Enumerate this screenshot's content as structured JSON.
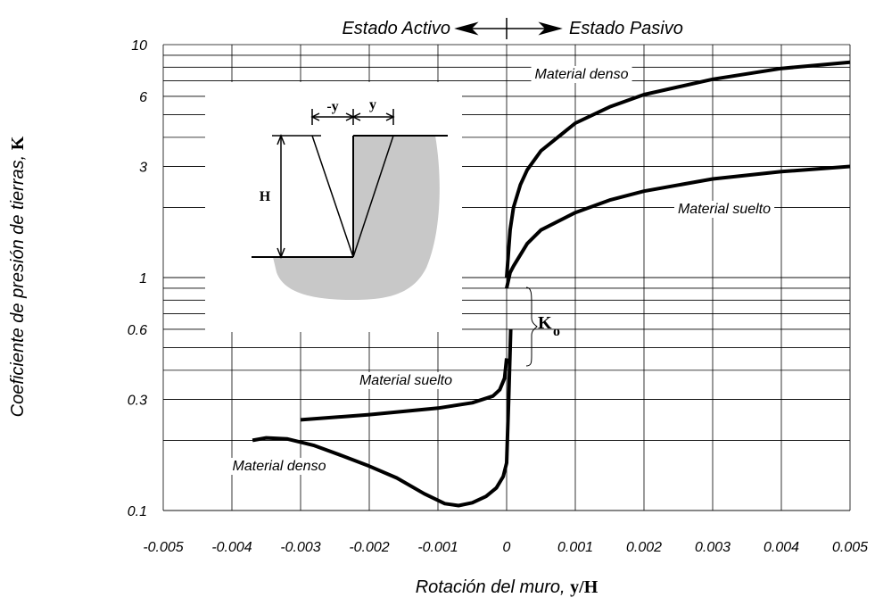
{
  "chart_data": {
    "type": "line",
    "top_left_label": "Estado Activo",
    "top_right_label": "Estado Pasivo",
    "x_label": "Rotación del muro, ",
    "x_label_symbol": "y/H",
    "y_label": "Coeficiente de presión de tierras, ",
    "y_label_symbol": "K",
    "ko_symbol": "K",
    "ko_subscript": "o",
    "inset": {
      "neg_y": "-y",
      "pos_y": "y",
      "height": "H"
    },
    "xlim": [
      -0.005,
      0.005
    ],
    "xticks": [
      -0.005,
      -0.004,
      -0.003,
      -0.002,
      -0.001,
      0,
      0.001,
      0.002,
      0.003,
      0.004,
      0.005
    ],
    "ylim": [
      0.1,
      10
    ],
    "yticks": [
      0.1,
      0.3,
      0.6,
      1,
      3,
      6,
      10
    ],
    "log_y": true,
    "grid": true,
    "series": [
      {
        "name": "Material denso",
        "color": "#000000",
        "x": [
          0,
          5e-05,
          0.0001,
          0.0002,
          0.0003,
          0.0005,
          0.001,
          0.0015,
          0.002,
          0.003,
          0.004,
          0.005
        ],
        "values": [
          1,
          1.6,
          2,
          2.5,
          2.9,
          3.5,
          4.6,
          5.4,
          6.1,
          7.1,
          7.9,
          8.4
        ]
      },
      {
        "name": "Material suelto",
        "color": "#000000",
        "x": [
          0,
          5e-05,
          0.0001,
          0.0003,
          0.0005,
          0.001,
          0.0015,
          0.002,
          0.003,
          0.004,
          0.005
        ],
        "values": [
          0.9,
          1.05,
          1.12,
          1.4,
          1.6,
          1.9,
          2.15,
          2.35,
          2.65,
          2.85,
          3
        ]
      },
      {
        "name": "Material suelto",
        "color": "#000000",
        "x": [
          -0.003,
          -0.002,
          -0.001,
          -0.0005,
          -0.0002,
          -0.0001,
          -3e-05,
          0
        ],
        "values": [
          0.245,
          0.258,
          0.275,
          0.29,
          0.31,
          0.33,
          0.37,
          0.45
        ]
      },
      {
        "name": "Material denso",
        "color": "#000000",
        "x": [
          -0.0037,
          -0.0035,
          -0.0032,
          -0.0028,
          -0.0024,
          -0.002,
          -0.0016,
          -0.0012,
          -0.0009,
          -0.0007,
          -0.0005,
          -0.0003,
          -0.00015,
          -5e-05,
          0,
          3e-05,
          6e-05
        ],
        "values": [
          0.2,
          0.205,
          0.203,
          0.19,
          0.172,
          0.155,
          0.138,
          0.118,
          0.107,
          0.105,
          0.108,
          0.115,
          0.125,
          0.14,
          0.16,
          0.3,
          0.6
        ]
      }
    ]
  }
}
